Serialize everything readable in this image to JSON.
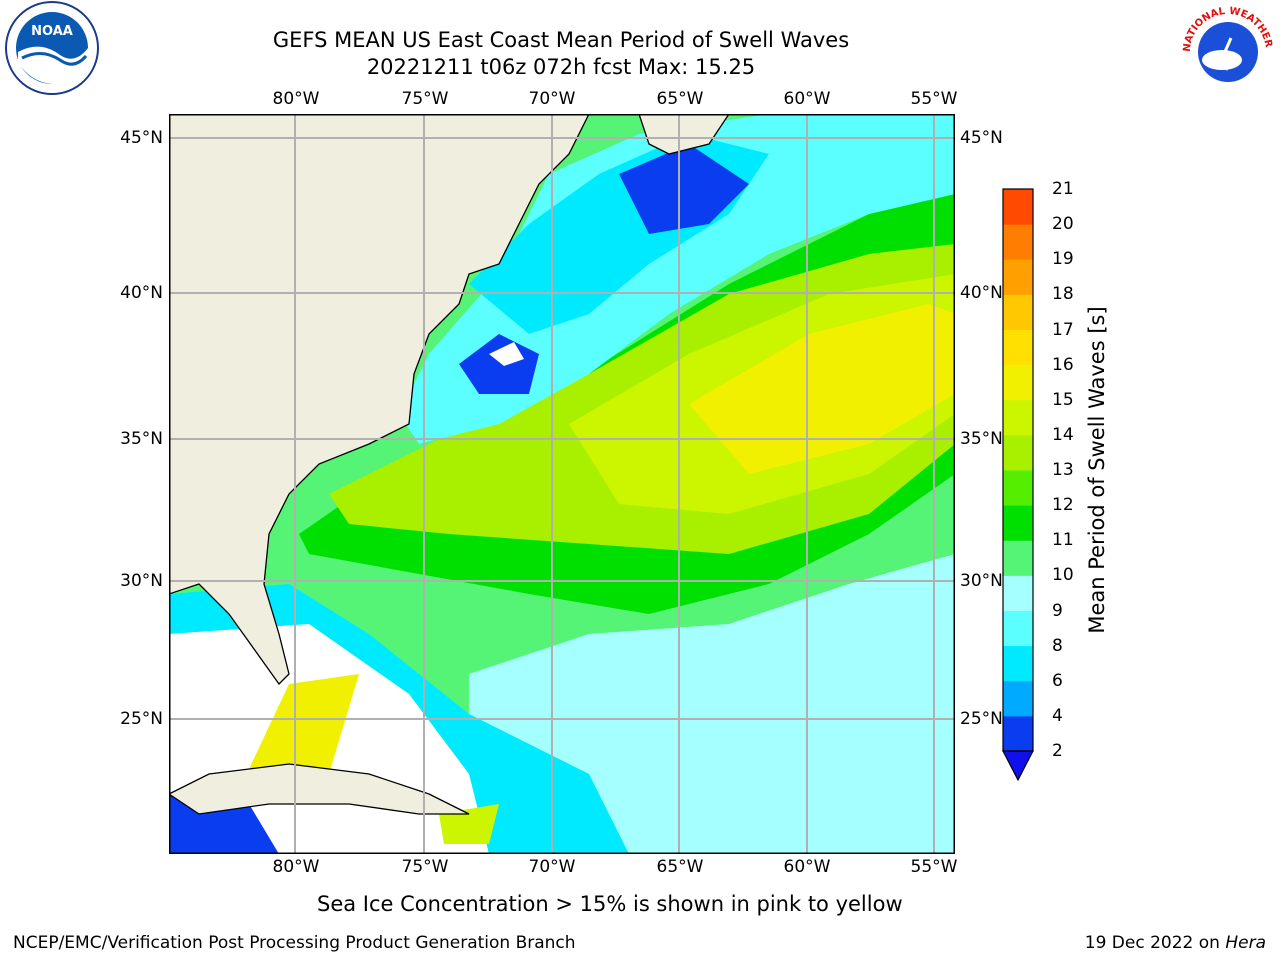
{
  "title": {
    "line1": "GEFS MEAN US East Coast Mean Period of Swell Waves",
    "line2": "20221211 t06z 072h fcst   Max: 15.25"
  },
  "map": {
    "lon_ticks": [
      "80°W",
      "75°W",
      "70°W",
      "65°W",
      "60°W",
      "55°W"
    ],
    "lat_ticks": [
      "45°N",
      "40°N",
      "35°N",
      "30°N",
      "25°N"
    ],
    "colors": {
      "land": "#efeedf",
      "grid": "#b0b0b0",
      "coast": "#000000"
    }
  },
  "colorbar": {
    "label": "Mean Period of Swell Waves [s]",
    "levels": [
      "2",
      "4",
      "6",
      "8",
      "9",
      "10",
      "11",
      "12",
      "13",
      "14",
      "15",
      "16",
      "17",
      "18",
      "19",
      "20",
      "21"
    ],
    "colors": [
      "#0a3cf0",
      "#00aaff",
      "#00eaff",
      "#5cffff",
      "#a6ffff",
      "#55f477",
      "#00e000",
      "#55ee00",
      "#a8f000",
      "#ccf500",
      "#f0f000",
      "#ffe000",
      "#ffc800",
      "#ffa000",
      "#ff7d00",
      "#ff4a00",
      "#ff0000"
    ],
    "extend_color": "#1010ee"
  },
  "subtitle": "Sea Ice Concentration > 15% is shown in pink to yellow",
  "footer": {
    "left": "NCEP/EMC/Verification Post Processing Product Generation Branch",
    "right_date": "19 Dec 2022 on",
    "right_machine": "Hera"
  },
  "logos": {
    "left": "NOAA",
    "right": "NATIONAL WEATHER SERVICE"
  }
}
